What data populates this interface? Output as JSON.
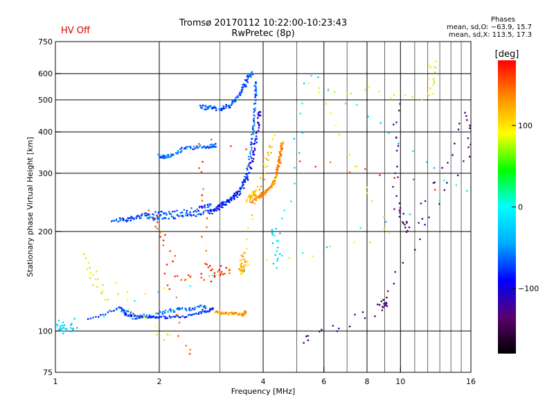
{
  "header": {
    "title_line1": "Tromsø 20170112 10:22:00-10:23:43",
    "title_line2": "RwPretec (8p)",
    "status": "HV Off"
  },
  "phase_box": {
    "heading": "Phases",
    "line1": "mean, sd,O: −63.9, 15.7",
    "line2": "mean, sd,X: 113.5, 17.3"
  },
  "colorbar": {
    "unit_label": "[deg]",
    "range": [
      -180,
      180
    ],
    "ticks": [
      {
        "value": 100,
        "label": "100"
      },
      {
        "value": 0,
        "label": "0"
      },
      {
        "value": -100,
        "label": "−100"
      }
    ],
    "colors": [
      "#000000",
      "#5a006e",
      "#0000ff",
      "#00aaff",
      "#00ffff",
      "#00ff00",
      "#ffff00",
      "#ff8c00",
      "#ff0000"
    ]
  },
  "chart_data": {
    "type": "scatter",
    "xlabel": "Frequency [MHz]",
    "ylabel": "Stationary phase Virtual Height [km]",
    "x_scale": "log",
    "y_scale": "log",
    "xlim": [
      1,
      16
    ],
    "ylim": [
      75,
      750
    ],
    "x_ticks": [
      {
        "value": 1,
        "label": "1"
      },
      {
        "value": 2,
        "label": "2"
      },
      {
        "value": 4,
        "label": "4"
      },
      {
        "value": 6,
        "label": "6"
      },
      {
        "value": 8,
        "label": "8"
      },
      {
        "value": 10,
        "label": "10"
      },
      {
        "value": 16,
        "label": "16"
      }
    ],
    "x_grid": [
      1,
      2,
      3,
      4,
      5,
      6,
      7,
      8,
      9,
      10,
      11,
      12,
      13,
      14,
      15,
      16
    ],
    "x_major_grid": [
      2,
      4,
      6,
      8,
      10
    ],
    "y_ticks": [
      {
        "value": 75,
        "label": "75"
      },
      {
        "value": 100,
        "label": "100"
      },
      {
        "value": 200,
        "label": "200"
      },
      {
        "value": 300,
        "label": "300"
      },
      {
        "value": 400,
        "label": "400"
      },
      {
        "value": 500,
        "label": "500"
      },
      {
        "value": 600,
        "label": "600"
      },
      {
        "value": 750,
        "label": "750"
      }
    ],
    "y_grid": [
      100,
      200,
      300,
      400,
      500,
      600
    ],
    "grid": true,
    "traces": [
      {
        "mode": "O",
        "phase": -80,
        "jitter": 0.01,
        "points": [
          [
            1.25,
            108
          ],
          [
            1.55,
            118
          ],
          [
            1.6,
            112
          ],
          [
            1.75,
            110
          ],
          [
            1.9,
            110
          ],
          [
            2.1,
            110
          ],
          [
            2.4,
            111
          ],
          [
            2.7,
            114
          ],
          [
            2.85,
            117
          ]
        ]
      },
      {
        "mode": "O",
        "phase": -60,
        "jitter": 0.02,
        "points": [
          [
            1.5,
            118
          ],
          [
            1.7,
            110
          ],
          [
            2.0,
            112
          ],
          [
            2.2,
            116
          ],
          [
            2.45,
            117
          ],
          [
            2.7,
            118
          ]
        ]
      },
      {
        "mode": "X",
        "phase": 130,
        "jitter": 0.01,
        "points": [
          [
            2.9,
            114
          ],
          [
            3.1,
            113
          ],
          [
            3.3,
            113
          ],
          [
            3.5,
            112
          ],
          [
            3.55,
            114
          ]
        ]
      },
      {
        "mode": "O",
        "phase": -65,
        "jitter": 0.015,
        "points": [
          [
            1.85,
            218
          ],
          [
            2.0,
            220
          ],
          [
            2.3,
            222
          ],
          [
            2.6,
            225
          ],
          [
            2.9,
            235
          ],
          [
            3.2,
            250
          ],
          [
            3.45,
            270
          ],
          [
            3.6,
            300
          ],
          [
            3.7,
            360
          ],
          [
            3.75,
            420
          ],
          [
            3.8,
            500
          ],
          [
            3.8,
            560
          ]
        ]
      },
      {
        "mode": "O",
        "phase": -95,
        "jitter": 0.02,
        "points": [
          [
            2.8,
            228
          ],
          [
            3.0,
            238
          ],
          [
            3.2,
            248
          ],
          [
            3.4,
            262
          ],
          [
            3.6,
            290
          ],
          [
            3.75,
            340
          ],
          [
            3.85,
            400
          ],
          [
            3.9,
            460
          ]
        ]
      },
      {
        "mode": "O",
        "phase": -75,
        "jitter": 0.02,
        "points": [
          [
            1.45,
            218
          ],
          [
            1.6,
            216
          ],
          [
            1.7,
            220
          ],
          [
            1.85,
            225
          ],
          [
            2.1,
            228
          ],
          [
            2.5,
            232
          ],
          [
            2.8,
            240
          ]
        ]
      },
      {
        "mode": "O",
        "phase": -60,
        "jitter": 0.015,
        "points": [
          [
            2.0,
            338
          ],
          [
            2.1,
            336
          ],
          [
            2.2,
            340
          ],
          [
            2.35,
            356
          ],
          [
            2.6,
            360
          ],
          [
            2.8,
            362
          ],
          [
            2.9,
            364
          ]
        ]
      },
      {
        "mode": "O",
        "phase": -70,
        "jitter": 0.02,
        "points": [
          [
            2.65,
            478
          ],
          [
            2.8,
            472
          ],
          [
            3.0,
            470
          ],
          [
            3.2,
            480
          ],
          [
            3.35,
            505
          ],
          [
            3.5,
            540
          ],
          [
            3.6,
            580
          ],
          [
            3.7,
            600
          ]
        ]
      },
      {
        "mode": "X",
        "phase": 135,
        "jitter": 0.015,
        "points": [
          [
            3.7,
            245
          ],
          [
            3.9,
            255
          ],
          [
            4.0,
            260
          ],
          [
            4.1,
            265
          ],
          [
            4.25,
            275
          ],
          [
            4.35,
            290
          ],
          [
            4.4,
            310
          ],
          [
            4.45,
            330
          ],
          [
            4.5,
            350
          ],
          [
            4.55,
            370
          ]
        ]
      },
      {
        "mode": "X",
        "phase": 115,
        "jitter": 0.03,
        "points": [
          [
            3.6,
            250
          ],
          [
            3.75,
            258
          ],
          [
            3.85,
            262
          ],
          [
            4.3,
            390
          ],
          [
            3.5,
            170
          ],
          [
            3.45,
            150
          ],
          [
            3.55,
            160
          ]
        ]
      },
      {
        "mode": "O",
        "phase": -130,
        "jitter": 0.05,
        "points": [
          [
            9.8,
            490
          ],
          [
            9.7,
            235
          ],
          [
            10.8,
            200
          ],
          [
            15.9,
            475
          ],
          [
            15.9,
            350
          ],
          [
            8.7,
            122
          ],
          [
            9.3,
            122
          ],
          [
            5.3,
            93
          ]
        ]
      },
      {
        "mode": "X",
        "phase": 160,
        "jitter": 0.05,
        "points": [
          [
            12.3,
            270
          ],
          [
            2.6,
            378
          ],
          [
            2.75,
            155
          ],
          [
            3.2,
            150
          ],
          [
            2.3,
            142
          ],
          [
            1.9,
            230
          ],
          [
            2.4,
            87
          ]
        ]
      },
      {
        "mode": "X",
        "phase": 90,
        "jitter": 0.05,
        "points": [
          [
            12.4,
            650
          ],
          [
            12.3,
            512
          ],
          [
            5.5,
            550
          ],
          [
            9.5,
            195
          ],
          [
            1.4,
            125
          ],
          [
            1.2,
            165
          ],
          [
            2.1,
            95
          ]
        ]
      },
      {
        "mode": "O",
        "phase": -20,
        "jitter": 0.05,
        "points": [
          [
            1.0,
            104
          ],
          [
            1.05,
            102
          ],
          [
            1.15,
            105
          ],
          [
            15.8,
            255
          ],
          [
            5.4,
            600
          ],
          [
            4.45,
            160
          ],
          [
            4.3,
            205
          ]
        ]
      }
    ]
  }
}
